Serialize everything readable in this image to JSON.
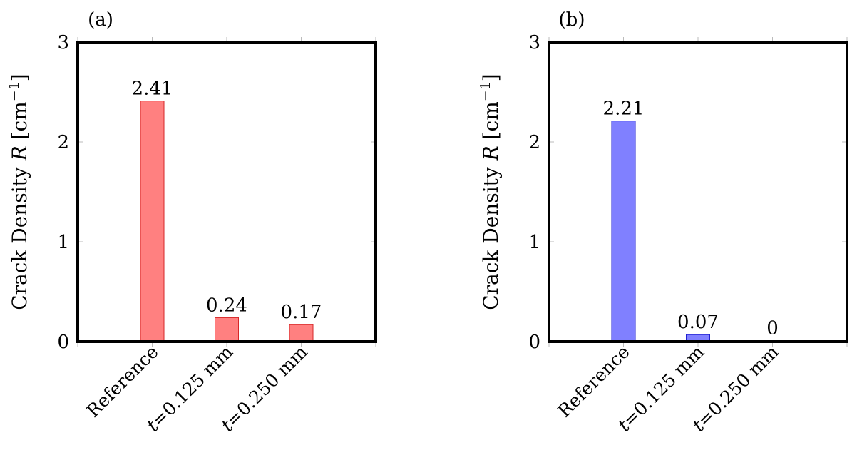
{
  "chart_data": [
    {
      "panel_label": "(a)",
      "type": "bar",
      "categories": [
        {
          "var": "",
          "text": "Reference"
        },
        {
          "var": "t",
          "text": "=0.125 mm"
        },
        {
          "var": "t",
          "text": "=0.250 mm"
        }
      ],
      "values": [
        2.41,
        0.24,
        0.17
      ],
      "data_labels": [
        "2.41",
        "0.24",
        "0.17"
      ],
      "ylabel": {
        "pre": "Crack Density ",
        "var": "R",
        "post1": " [cm",
        "sup": "−1",
        "post2": "]"
      },
      "ylim": [
        0,
        3
      ],
      "yticks": [
        0,
        1,
        2,
        3
      ],
      "ytick_labels": [
        "0",
        "1",
        "2",
        "3"
      ],
      "bar_fill": "#ff8080",
      "bar_stroke": "#d62728",
      "grid": false
    },
    {
      "panel_label": "(b)",
      "type": "bar",
      "categories": [
        {
          "var": "",
          "text": "Reference"
        },
        {
          "var": "t",
          "text": "=0.125 mm"
        },
        {
          "var": "t",
          "text": "=0.250 mm"
        }
      ],
      "values": [
        2.21,
        0.07,
        0
      ],
      "data_labels": [
        "2.21",
        "0.07",
        "0"
      ],
      "ylabel": {
        "pre": "Crack Density ",
        "var": "R",
        "post1": " [cm",
        "sup": "−1",
        "post2": "]"
      },
      "ylim": [
        0,
        3
      ],
      "yticks": [
        0,
        1,
        2,
        3
      ],
      "ytick_labels": [
        "0",
        "1",
        "2",
        "3"
      ],
      "bar_fill": "#8080ff",
      "bar_stroke": "#2020d0",
      "grid": false
    }
  ]
}
